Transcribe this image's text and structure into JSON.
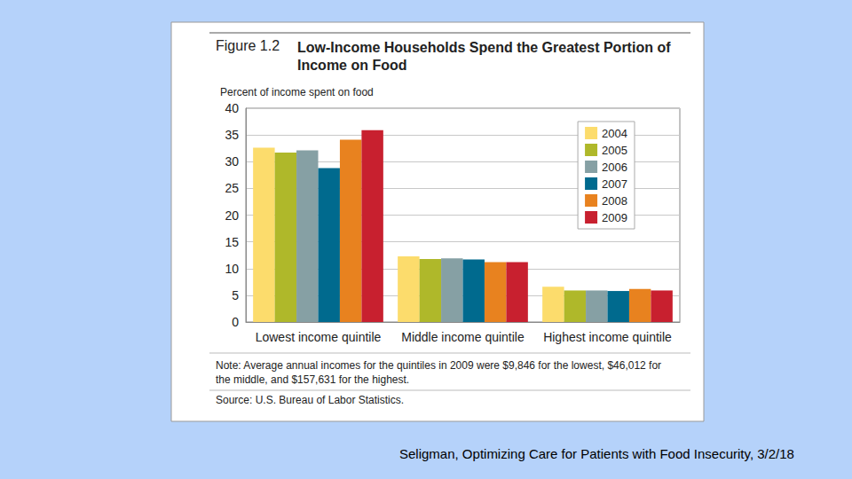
{
  "chart_data": {
    "type": "bar",
    "figure_label": "Figure 1.2",
    "title": "Low-Income Households Spend the Greatest Portion of\nIncome on Food",
    "y_label": "Percent of income spent on food",
    "categories": [
      "Lowest income quintile",
      "Middle income quintile",
      "Highest income quintile"
    ],
    "series": [
      {
        "name": "2004",
        "color": "#fcdc6c",
        "values": [
          32.6,
          12.3,
          6.6
        ]
      },
      {
        "name": "2005",
        "color": "#afb82a",
        "values": [
          31.7,
          11.8,
          5.9
        ]
      },
      {
        "name": "2006",
        "color": "#86a0a4",
        "values": [
          32.1,
          11.9,
          5.9
        ]
      },
      {
        "name": "2007",
        "color": "#006a8e",
        "values": [
          28.8,
          11.7,
          5.8
        ]
      },
      {
        "name": "2008",
        "color": "#e8821f",
        "values": [
          34.1,
          11.2,
          6.2
        ]
      },
      {
        "name": "2009",
        "color": "#c8202f",
        "values": [
          35.9,
          11.2,
          5.9
        ]
      }
    ],
    "ylim": [
      0,
      40
    ],
    "yticks": [
      0,
      5,
      10,
      15,
      20,
      25,
      30,
      35,
      40
    ],
    "grid": true,
    "legend": "top-right",
    "note": "Note: Average annual incomes for the quintiles in 2009 were $9,846 for the lowest, $46,012 for the middle, and $157,631 for the highest.",
    "source": "Source: U.S. Bureau of Labor Statistics."
  },
  "caption": "Seligman, Optimizing Care for Patients with Food Insecurity, 3/2/18"
}
